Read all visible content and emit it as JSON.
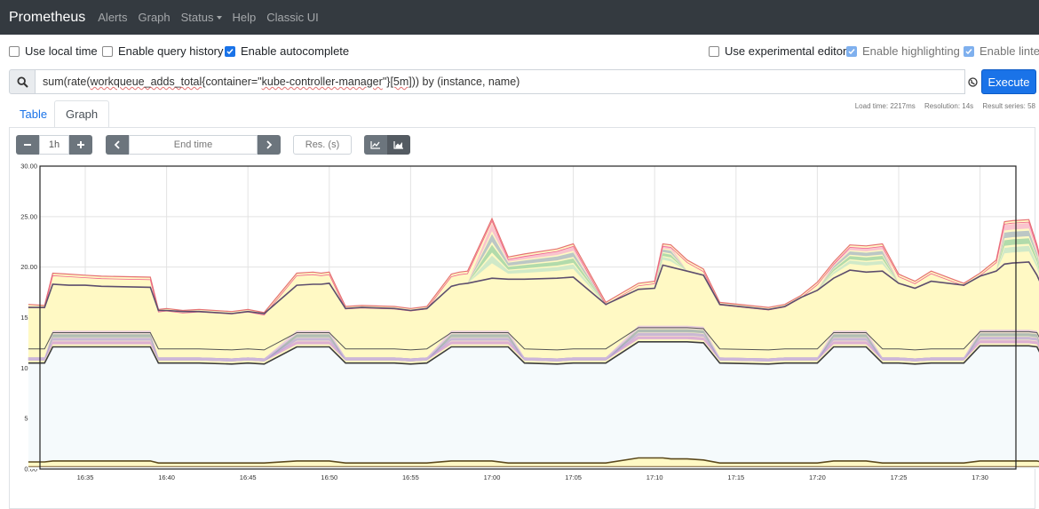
{
  "navbar": {
    "brand": "Prometheus",
    "links": [
      "Alerts",
      "Graph",
      "Status",
      "Help",
      "Classic UI"
    ]
  },
  "options": {
    "use_local_time": {
      "label": "Use local time",
      "checked": false
    },
    "enable_query_history": {
      "label": "Enable query history",
      "checked": false
    },
    "enable_autocomplete": {
      "label": "Enable autocomplete",
      "checked": true
    },
    "use_experimental_editor": {
      "label": "Use experimental editor",
      "checked": false
    },
    "enable_highlighting": {
      "label": "Enable highlighting",
      "checked": true
    },
    "enable_linter": {
      "label": "Enable linter",
      "checked": true
    }
  },
  "query": {
    "part1": "sum(rate(",
    "part2": "workqueue_adds_total",
    "part3": "{container=\"",
    "part4": "kube-controller-manager",
    "part5": "\"}",
    "part6": "[5m]",
    "part7": ")) by (instance, name)"
  },
  "execute_label": "Execute",
  "stats": {
    "load_time": "Load time: 2217ms",
    "resolution": "Resolution: 14s",
    "result_series": "Result series: 58"
  },
  "tabs": {
    "table": "Table",
    "graph": "Graph"
  },
  "controls": {
    "range": "1h",
    "end_time_placeholder": "End time",
    "resolution_placeholder": "Res. (s)"
  },
  "colors": {
    "accent": "#1a73e8",
    "navbar": "#343a40",
    "stack_fill": "#fff9c4"
  },
  "chart_data": {
    "type": "area",
    "stacked": true,
    "ylim": [
      0,
      30
    ],
    "yticks": [
      "0.00",
      "5.00",
      "10.00",
      "15.00",
      "20.00",
      "25.00",
      "30.00"
    ],
    "xticks": [
      "16:35",
      "16:40",
      "16:45",
      "16:50",
      "16:55",
      "17:00",
      "17:05",
      "17:10",
      "17:15",
      "17:20",
      "17:25",
      "17:30"
    ],
    "x_minutes": [
      -3.5,
      -2.5,
      -2,
      -1,
      0,
      1,
      4,
      4.5,
      5,
      6,
      7,
      9,
      10,
      11,
      13,
      14,
      14.5,
      15,
      16,
      17,
      19,
      20,
      21,
      22.5,
      23,
      23.5,
      25,
      26,
      27,
      29,
      30,
      32,
      34,
      35,
      35.5,
      36,
      37,
      38,
      39,
      42,
      43,
      44,
      45,
      46,
      47,
      48,
      49,
      50,
      51,
      52,
      54,
      55,
      56,
      56.5,
      57,
      58,
      58.5,
      59,
      60,
      61,
      61.5,
      62.5
    ],
    "total": [
      16.3,
      16.2,
      19.4,
      19.3,
      19.2,
      19.1,
      19.0,
      15.8,
      15.9,
      15.7,
      15.8,
      15.6,
      15.8,
      15.5,
      19.4,
      19.5,
      19.4,
      19.5,
      16.1,
      16.2,
      16.1,
      15.9,
      16.1,
      19.3,
      19.5,
      19.6,
      24.8,
      21.0,
      21.3,
      21.8,
      22.3,
      16.5,
      18.4,
      18.6,
      22.3,
      22.2,
      20.7,
      19.8,
      16.5,
      16.0,
      16.3,
      17.2,
      18.5,
      20.5,
      22.2,
      22.1,
      22.3,
      19.3,
      18.6,
      19.6,
      18.4,
      19.4,
      20.7,
      24.5,
      24.6,
      24.7,
      22.2,
      18.9,
      19.1,
      18.7,
      19.2,
      18.8
    ],
    "series_lines": [
      {
        "level": "mid",
        "values": [
          16.0,
          16.0,
          18.3,
          18.2,
          18.2,
          18.1,
          18.0,
          15.7,
          15.7,
          15.6,
          15.6,
          15.4,
          15.6,
          15.4,
          18.2,
          18.3,
          18.3,
          18.4,
          15.9,
          16.0,
          15.9,
          15.7,
          15.9,
          18.1,
          18.3,
          18.4,
          18.9,
          18.8,
          18.8,
          18.9,
          19.0,
          16.3,
          17.8,
          17.9,
          20.2,
          20.0,
          19.6,
          19.2,
          16.3,
          15.8,
          16.1,
          17.0,
          17.7,
          18.9,
          19.7,
          19.5,
          19.6,
          18.4,
          17.9,
          18.6,
          18.2,
          19.1,
          19.6,
          20.3,
          20.4,
          20.5,
          19.2,
          17.4,
          17.6,
          17.3,
          17.6,
          17.4
        ]
      },
      {
        "level": "low",
        "values": [
          10.5,
          10.5,
          12.1,
          12.1,
          12.1,
          12.1,
          12.1,
          10.5,
          10.5,
          10.5,
          10.5,
          10.4,
          10.5,
          10.4,
          12.1,
          12.1,
          12.1,
          12.1,
          10.5,
          10.5,
          10.5,
          10.4,
          10.5,
          12.1,
          12.1,
          12.1,
          12.1,
          12.1,
          10.5,
          10.4,
          10.5,
          10.5,
          12.6,
          12.6,
          12.6,
          12.6,
          12.6,
          12.5,
          10.5,
          10.4,
          10.5,
          10.5,
          10.5,
          12.1,
          12.1,
          12.1,
          10.5,
          10.5,
          10.4,
          10.5,
          10.5,
          12.2,
          12.2,
          12.2,
          12.2,
          12.2,
          12.1,
          10.5,
          10.5,
          10.5,
          10.5,
          10.5
        ]
      },
      {
        "level": "base",
        "values": [
          0.7,
          0.7,
          0.8,
          0.8,
          0.8,
          0.8,
          0.8,
          0.6,
          0.6,
          0.6,
          0.6,
          0.6,
          0.6,
          0.6,
          0.8,
          0.8,
          0.8,
          0.8,
          0.6,
          0.6,
          0.6,
          0.6,
          0.6,
          0.8,
          0.8,
          0.8,
          0.8,
          0.6,
          0.6,
          0.6,
          0.6,
          0.6,
          1.1,
          1.1,
          1.1,
          1.0,
          1.0,
          0.9,
          0.6,
          0.6,
          0.6,
          0.6,
          0.6,
          0.8,
          0.8,
          0.8,
          0.6,
          0.6,
          0.6,
          0.6,
          0.6,
          0.8,
          0.8,
          0.8,
          0.8,
          0.8,
          0.8,
          0.6,
          0.6,
          0.6,
          0.6,
          0.6
        ]
      }
    ]
  }
}
